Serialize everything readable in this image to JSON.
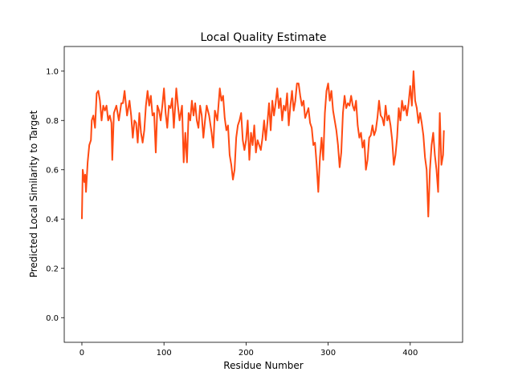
{
  "chart_data": {
    "type": "line",
    "title": "Local Quality Estimate",
    "x_label": "Residue Number",
    "y_label": "Predicted Local Similarity to Target",
    "xlim": [
      -21.5,
      463.8
    ],
    "ylim": [
      -0.1,
      1.1
    ],
    "xticks": [
      0,
      100,
      200,
      300,
      400
    ],
    "yticks": [
      {
        "value": 0,
        "label": "0.0"
      },
      0.2,
      0.4,
      0.6,
      0.8,
      {
        "value": 1,
        "label": "1.0"
      }
    ],
    "x": [
      0,
      1,
      3,
      4,
      5,
      7,
      9,
      11,
      12,
      14,
      16,
      18,
      20,
      22,
      24,
      26,
      28,
      30,
      32,
      34,
      36,
      37,
      39,
      42,
      45,
      48,
      50,
      52,
      55,
      58,
      60,
      62,
      64,
      66,
      68,
      70,
      72,
      74,
      76,
      78,
      80,
      82,
      84,
      86,
      88,
      90,
      92,
      94,
      96,
      98,
      100,
      102,
      104,
      106,
      108,
      110,
      112,
      115,
      117,
      119,
      122,
      124,
      126,
      128,
      130,
      132,
      134,
      136,
      138,
      140,
      142,
      144,
      146,
      148,
      150,
      152,
      155,
      158,
      160,
      162,
      165,
      168,
      170,
      172,
      174,
      176,
      178,
      180,
      182,
      184,
      186,
      188,
      190,
      192,
      194,
      196,
      198,
      200,
      202,
      204,
      206,
      208,
      210,
      212,
      214,
      216,
      218,
      220,
      222,
      224,
      226,
      228,
      230,
      232,
      234,
      236,
      238,
      240,
      242,
      244,
      246,
      248,
      250,
      252,
      254,
      256,
      258,
      260,
      262,
      264,
      266,
      268,
      270,
      272,
      274,
      276,
      278,
      280,
      282,
      284,
      286,
      288,
      290,
      292,
      294,
      296,
      298,
      300,
      302,
      304,
      306,
      308,
      310,
      312,
      314,
      316,
      318,
      320,
      322,
      324,
      326,
      328,
      330,
      332,
      334,
      336,
      338,
      340,
      342,
      344,
      346,
      348,
      350,
      352,
      354,
      356,
      358,
      360,
      362,
      364,
      366,
      368,
      370,
      372,
      374,
      376,
      378,
      380,
      382,
      384,
      386,
      388,
      390,
      392,
      394,
      396,
      398,
      400,
      402,
      404,
      406,
      408,
      410,
      412,
      414,
      416,
      418,
      420,
      422,
      424,
      426,
      428,
      430,
      432,
      434,
      436,
      438,
      440,
      441
    ],
    "series": [
      {
        "color": "#ff4a12",
        "values": [
          0.4,
          0.6,
          0.55,
          0.58,
          0.51,
          0.63,
          0.7,
          0.72,
          0.8,
          0.82,
          0.77,
          0.91,
          0.92,
          0.88,
          0.8,
          0.86,
          0.84,
          0.86,
          0.8,
          0.82,
          0.79,
          0.64,
          0.83,
          0.86,
          0.8,
          0.87,
          0.87,
          0.92,
          0.82,
          0.88,
          0.82,
          0.73,
          0.8,
          0.79,
          0.71,
          0.83,
          0.75,
          0.71,
          0.76,
          0.86,
          0.92,
          0.86,
          0.9,
          0.82,
          0.83,
          0.67,
          0.86,
          0.84,
          0.8,
          0.86,
          0.93,
          0.83,
          0.77,
          0.86,
          0.85,
          0.89,
          0.77,
          0.93,
          0.86,
          0.8,
          0.86,
          0.63,
          0.75,
          0.63,
          0.83,
          0.8,
          0.88,
          0.82,
          0.87,
          0.8,
          0.77,
          0.86,
          0.82,
          0.73,
          0.8,
          0.86,
          0.82,
          0.75,
          0.69,
          0.84,
          0.8,
          0.93,
          0.88,
          0.9,
          0.81,
          0.76,
          0.78,
          0.66,
          0.62,
          0.56,
          0.6,
          0.73,
          0.78,
          0.8,
          0.83,
          0.72,
          0.68,
          0.72,
          0.8,
          0.64,
          0.75,
          0.7,
          0.78,
          0.67,
          0.72,
          0.7,
          0.68,
          0.73,
          0.8,
          0.72,
          0.79,
          0.87,
          0.76,
          0.88,
          0.82,
          0.87,
          0.93,
          0.85,
          0.89,
          0.8,
          0.86,
          0.84,
          0.91,
          0.78,
          0.86,
          0.92,
          0.84,
          0.88,
          0.95,
          0.95,
          0.9,
          0.86,
          0.88,
          0.81,
          0.83,
          0.85,
          0.79,
          0.77,
          0.7,
          0.71,
          0.62,
          0.51,
          0.65,
          0.73,
          0.64,
          0.83,
          0.92,
          0.95,
          0.88,
          0.92,
          0.84,
          0.8,
          0.76,
          0.7,
          0.61,
          0.67,
          0.83,
          0.9,
          0.85,
          0.87,
          0.86,
          0.9,
          0.86,
          0.84,
          0.88,
          0.78,
          0.73,
          0.75,
          0.69,
          0.72,
          0.6,
          0.64,
          0.73,
          0.74,
          0.78,
          0.74,
          0.76,
          0.81,
          0.88,
          0.82,
          0.81,
          0.78,
          0.86,
          0.8,
          0.82,
          0.78,
          0.72,
          0.62,
          0.66,
          0.73,
          0.85,
          0.8,
          0.88,
          0.84,
          0.86,
          0.82,
          0.87,
          0.94,
          0.86,
          1.0,
          0.88,
          0.85,
          0.79,
          0.83,
          0.79,
          0.74,
          0.65,
          0.6,
          0.41,
          0.6,
          0.7,
          0.75,
          0.66,
          0.6,
          0.51,
          0.83,
          0.62,
          0.66,
          0.76
        ]
      }
    ]
  }
}
